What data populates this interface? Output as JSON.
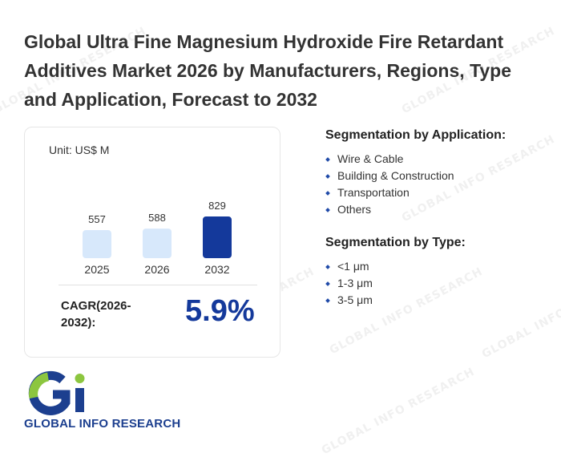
{
  "title": "Global Ultra Fine Magnesium Hydroxide Fire Retardant Additives Market 2026 by Manufacturers, Regions, Type and Application, Forecast to 2032",
  "unit_label": "Unit: US$ M",
  "cagr": {
    "label": "CAGR(2026-2032):",
    "value": "5.9%"
  },
  "segmentation_application": {
    "heading": "Segmentation by Application:",
    "items": [
      "Wire & Cable",
      "Building & Construction",
      "Transportation",
      "Others"
    ]
  },
  "segmentation_type": {
    "heading": "Segmentation by Type:",
    "items": [
      "<1 μm",
      "1-3 μm",
      "3-5 μm"
    ]
  },
  "logo": {
    "text": "GLOBAL INFO RESEARCH",
    "watermark": "GLOBAL INFO RESEARCH"
  },
  "colors": {
    "bar_light": "#d7e8fb",
    "bar_dark": "#14399b",
    "accent": "#14399b"
  },
  "chart_data": {
    "type": "bar",
    "title": "",
    "xlabel": "",
    "ylabel": "",
    "categories": [
      "2025",
      "2026",
      "2032"
    ],
    "values": [
      557,
      588,
      829
    ],
    "bar_colors": [
      "#d7e8fb",
      "#d7e8fb",
      "#14399b"
    ]
  }
}
